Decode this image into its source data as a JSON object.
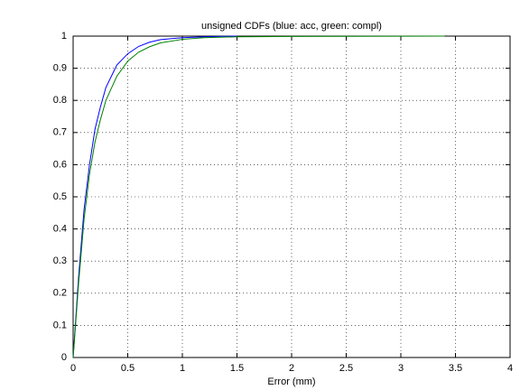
{
  "chart_data": {
    "type": "line",
    "title": "unsigned CDFs (blue: acc, green: compl)",
    "xlabel": "Error (mm)",
    "xlim": [
      0,
      4
    ],
    "xticks": [
      0,
      0.5,
      1,
      1.5,
      2,
      2.5,
      3,
      3.5,
      4
    ],
    "ylim": [
      0,
      1
    ],
    "yticks": [
      0,
      0.1,
      0.2,
      0.3,
      0.4,
      0.5,
      0.6,
      0.7,
      0.8,
      0.9,
      1
    ],
    "grid": true,
    "series": [
      {
        "color": "#0000ff",
        "x": [
          0,
          0.02,
          0.05,
          0.1,
          0.15,
          0.2,
          0.25,
          0.3,
          0.4,
          0.5,
          0.6,
          0.7,
          0.8,
          1.0,
          1.2,
          1.5
        ],
        "values": [
          0,
          0.1,
          0.25,
          0.46,
          0.6,
          0.71,
          0.78,
          0.84,
          0.91,
          0.945,
          0.968,
          0.981,
          0.989,
          0.995,
          0.998,
          1.0
        ]
      },
      {
        "color": "#008000",
        "x": [
          0,
          0.02,
          0.05,
          0.1,
          0.15,
          0.2,
          0.25,
          0.3,
          0.4,
          0.5,
          0.6,
          0.7,
          0.8,
          1.0,
          1.2,
          1.5,
          2.0,
          3.4
        ],
        "values": [
          0,
          0.09,
          0.23,
          0.43,
          0.57,
          0.67,
          0.74,
          0.8,
          0.875,
          0.922,
          0.95,
          0.967,
          0.979,
          0.99,
          0.995,
          0.998,
          0.999,
          1.0
        ]
      }
    ]
  }
}
